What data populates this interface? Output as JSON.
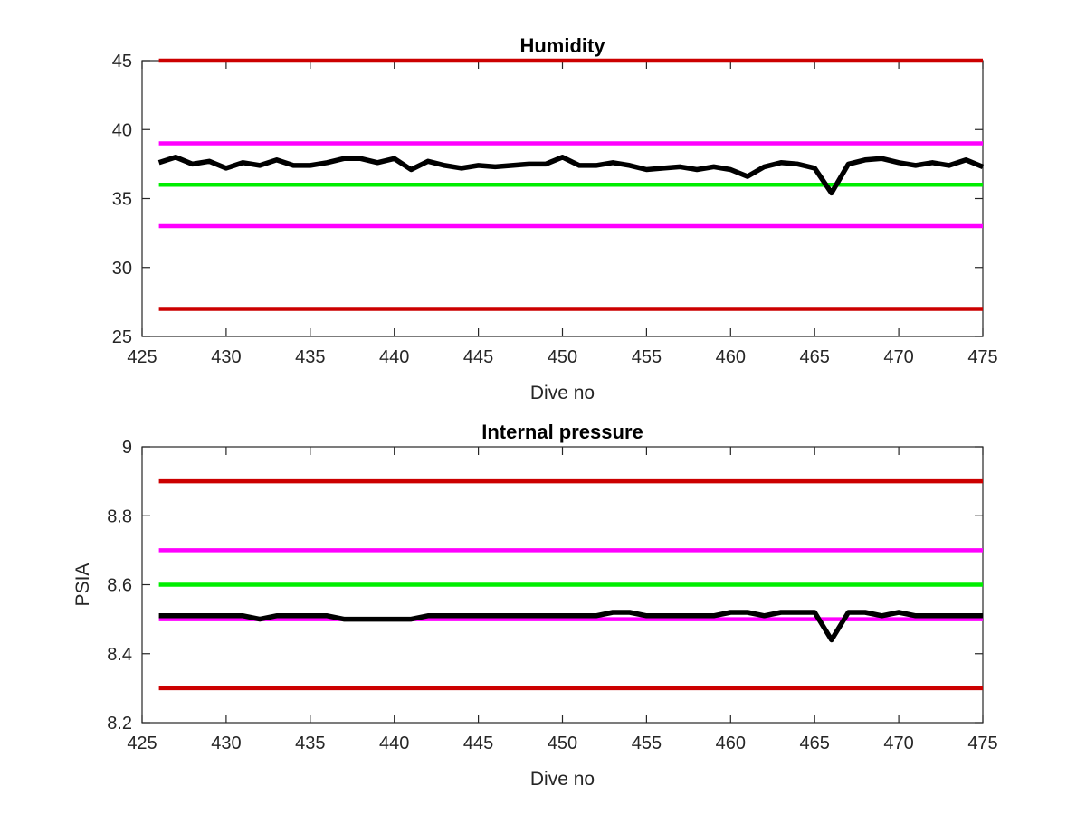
{
  "chart_data": [
    {
      "type": "line",
      "title": "Humidity",
      "xlabel": "Dive no",
      "ylabel": "",
      "xlim": [
        425,
        475
      ],
      "ylim": [
        25,
        45
      ],
      "xticks": [
        "425",
        "430",
        "435",
        "440",
        "445",
        "450",
        "455",
        "460",
        "465",
        "470",
        "475"
      ],
      "yticks": [
        "25",
        "30",
        "35",
        "40",
        "45"
      ],
      "grid": false,
      "x_start": 426,
      "series": [
        {
          "color": "#cc0000",
          "x": [
            426,
            475
          ],
          "values": [
            45,
            45
          ]
        },
        {
          "color": "#cc0000",
          "x": [
            426,
            475
          ],
          "values": [
            27,
            27
          ]
        },
        {
          "color": "#ff00ff",
          "x": [
            426,
            475
          ],
          "values": [
            39,
            39
          ]
        },
        {
          "color": "#ff00ff",
          "x": [
            426,
            475
          ],
          "values": [
            33,
            33
          ]
        },
        {
          "color": "#00ee00",
          "x": [
            426,
            475
          ],
          "values": [
            36,
            36
          ]
        },
        {
          "color": "#000000",
          "values": [
            37.6,
            38.0,
            37.5,
            37.7,
            37.2,
            37.6,
            37.4,
            37.8,
            37.4,
            37.4,
            37.6,
            37.9,
            37.9,
            37.6,
            37.9,
            37.1,
            37.7,
            37.4,
            37.2,
            37.4,
            37.3,
            37.4,
            37.5,
            37.5,
            38.0,
            37.4,
            37.4,
            37.6,
            37.4,
            37.1,
            37.2,
            37.3,
            37.1,
            37.3,
            37.1,
            36.6,
            37.3,
            37.6,
            37.5,
            37.2,
            35.4,
            37.5,
            37.8,
            37.9,
            37.6,
            37.4,
            37.6,
            37.4,
            37.8,
            37.3
          ]
        }
      ]
    },
    {
      "type": "line",
      "title": "Internal pressure",
      "xlabel": "Dive no",
      "ylabel": "PSIA",
      "xlim": [
        425,
        475
      ],
      "ylim": [
        8.2,
        9
      ],
      "xticks": [
        "425",
        "430",
        "435",
        "440",
        "445",
        "450",
        "455",
        "460",
        "465",
        "470",
        "475"
      ],
      "yticks": [
        "8.2",
        "8.4",
        "8.6",
        "8.8",
        "9"
      ],
      "grid": false,
      "x_start": 426,
      "series": [
        {
          "color": "#cc0000",
          "x": [
            426,
            475
          ],
          "values": [
            8.9,
            8.9
          ]
        },
        {
          "color": "#cc0000",
          "x": [
            426,
            475
          ],
          "values": [
            8.3,
            8.3
          ]
        },
        {
          "color": "#ff00ff",
          "x": [
            426,
            475
          ],
          "values": [
            8.7,
            8.7
          ]
        },
        {
          "color": "#ff00ff",
          "x": [
            426,
            475
          ],
          "values": [
            8.5,
            8.5
          ]
        },
        {
          "color": "#00ee00",
          "x": [
            426,
            475
          ],
          "values": [
            8.6,
            8.6
          ]
        },
        {
          "color": "#000000",
          "values": [
            8.51,
            8.51,
            8.51,
            8.51,
            8.51,
            8.51,
            8.5,
            8.51,
            8.51,
            8.51,
            8.51,
            8.5,
            8.5,
            8.5,
            8.5,
            8.5,
            8.51,
            8.51,
            8.51,
            8.51,
            8.51,
            8.51,
            8.51,
            8.51,
            8.51,
            8.51,
            8.51,
            8.52,
            8.52,
            8.51,
            8.51,
            8.51,
            8.51,
            8.51,
            8.52,
            8.52,
            8.51,
            8.52,
            8.52,
            8.52,
            8.44,
            8.52,
            8.52,
            8.51,
            8.52,
            8.51,
            8.51,
            8.51,
            8.51,
            8.51
          ]
        }
      ]
    }
  ]
}
